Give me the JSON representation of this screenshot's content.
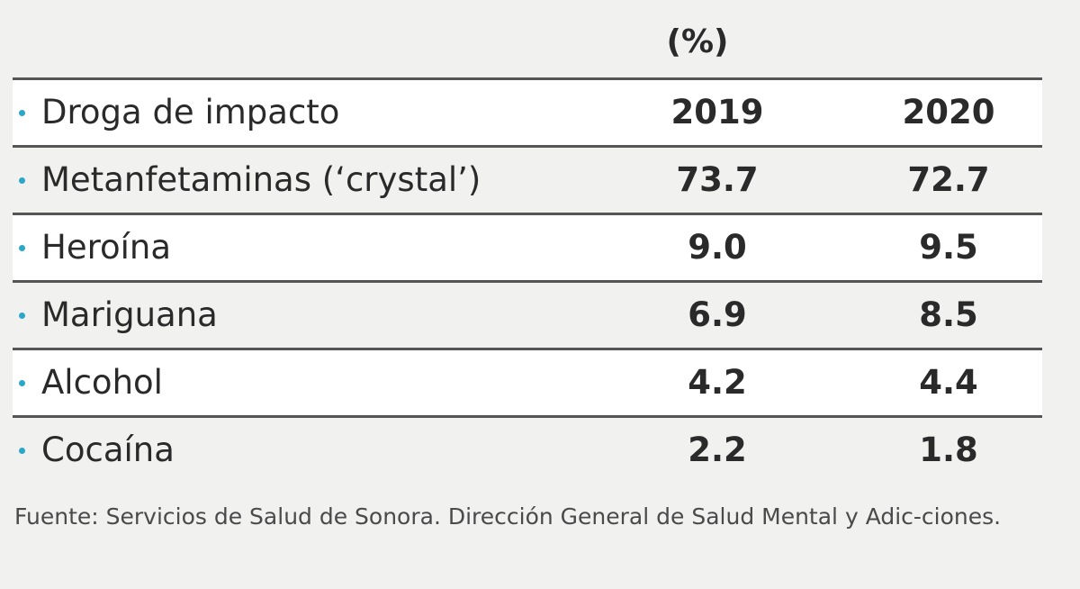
{
  "unit_label": "(%)",
  "chart_data": {
    "type": "table",
    "header": {
      "label": "Droga de impacto",
      "col1": "2019",
      "col2": "2020"
    },
    "rows": [
      {
        "label": "Metanfetaminas (‘crystal’)",
        "v2019": "73.7",
        "v2020": "72.7"
      },
      {
        "label": "Heroína",
        "v2019": "9.0",
        "v2020": "9.5"
      },
      {
        "label": "Mariguana",
        "v2019": "6.9",
        "v2020": "8.5"
      },
      {
        "label": "Alcohol",
        "v2019": "4.2",
        "v2020": "4.4"
      },
      {
        "label": "Cocaína",
        "v2019": "2.2",
        "v2020": "1.8"
      }
    ]
  },
  "source": "Fuente: Servicios de Salud de Sonora. Dirección General de Salud Mental y Adic-ciones.",
  "colors": {
    "bullet": "#2aa7c9",
    "rule": "#555555",
    "band": "#ffffff",
    "background": "#f1f1f0"
  }
}
